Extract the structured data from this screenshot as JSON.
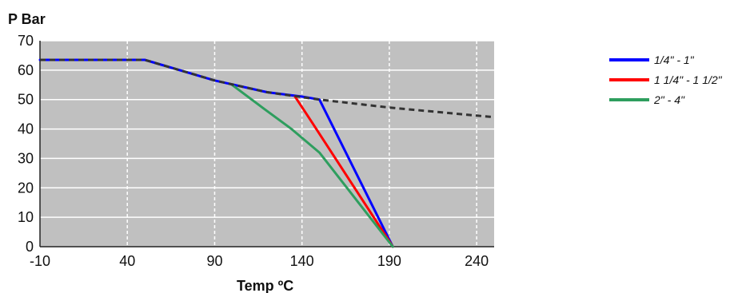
{
  "chart_data": {
    "type": "line",
    "ylabel": "P Bar",
    "xlabel": "Temp ºC",
    "xlim": [
      -10,
      250
    ],
    "ylim": [
      0,
      70
    ],
    "xticks": [
      -10,
      40,
      90,
      140,
      190,
      240
    ],
    "yticks": [
      0,
      10,
      20,
      30,
      40,
      50,
      60,
      70
    ],
    "grid": true,
    "legend_position": "right",
    "plot_background": "#c0c0c0",
    "series": [
      {
        "name": "1/4\" - 1\"",
        "color": "#0000ff",
        "x": [
          -10,
          50,
          90,
          120,
          140,
          150,
          192
        ],
        "y": [
          63.5,
          63.5,
          56.5,
          52.5,
          51,
          50,
          0
        ]
      },
      {
        "name": "1 1/4\" - 1 1/2\"",
        "color": "#ff0000",
        "x": [
          136,
          146,
          192
        ],
        "y": [
          51,
          42,
          0
        ]
      },
      {
        "name": "2\"  - 4\"",
        "color": "#2e9e5e",
        "x": [
          100,
          118,
          134,
          150,
          192
        ],
        "y": [
          55,
          47,
          40,
          32,
          0
        ]
      },
      {
        "color": "#333333",
        "style": "dashed",
        "x": [
          -10,
          50,
          90,
          120,
          150,
          190,
          250
        ],
        "y": [
          63.5,
          63.5,
          56.5,
          52.5,
          50,
          47.3,
          44
        ]
      }
    ]
  }
}
